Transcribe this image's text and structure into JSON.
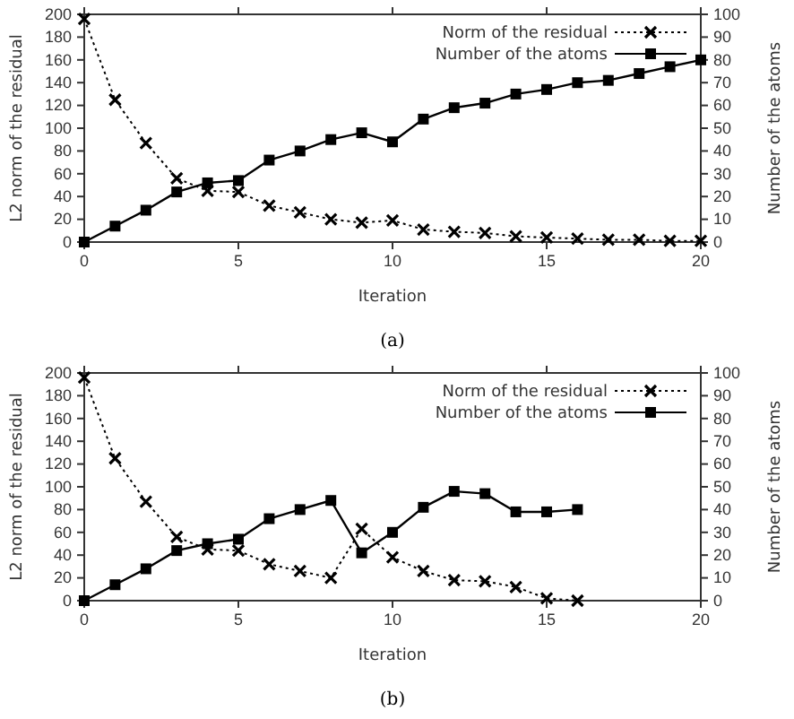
{
  "chart_data": [
    {
      "type": "line",
      "xlabel": "Iteration",
      "ylabel": "L2 norm of the residual",
      "y2label": "Number of the atoms",
      "annotations": [
        "(a)"
      ],
      "x": [
        0,
        1,
        2,
        3,
        4,
        5,
        6,
        7,
        8,
        9,
        10,
        11,
        12,
        13,
        14,
        15,
        16,
        17,
        18,
        19,
        20
      ],
      "xlim": [
        0,
        20
      ],
      "xticks": [
        0,
        5,
        10,
        15,
        20
      ],
      "ylim": [
        0,
        200
      ],
      "yticks": [
        0,
        20,
        40,
        60,
        80,
        100,
        120,
        140,
        160,
        180,
        200
      ],
      "y2lim": [
        0,
        100
      ],
      "y2ticks": [
        0,
        10,
        20,
        30,
        40,
        50,
        60,
        70,
        80,
        90,
        100
      ],
      "legend": "top right",
      "grid": false,
      "series": [
        {
          "name": "Norm of the residual",
          "color": "#000000",
          "marker": "cross",
          "line_style": "dotted",
          "values": [
            196,
            125,
            87,
            56,
            45,
            44,
            32,
            26,
            20,
            17,
            19,
            11,
            9,
            8,
            5,
            4,
            3,
            2,
            2,
            1,
            1
          ]
        },
        {
          "name": "Number of the atoms",
          "color": "#000000",
          "marker": "square",
          "line_style": "solid",
          "axis": "y2",
          "values": [
            0,
            7,
            14,
            22,
            26,
            27,
            36,
            40,
            45,
            48,
            44,
            54,
            59,
            61,
            65,
            67,
            70,
            71,
            74,
            77,
            80
          ]
        }
      ]
    },
    {
      "type": "line",
      "xlabel": "Iteration",
      "ylabel": "L2 norm of the residual",
      "y2label": "Number of the atoms",
      "annotations": [
        "(b)"
      ],
      "x": [
        0,
        1,
        2,
        3,
        4,
        5,
        6,
        7,
        8,
        9,
        10,
        11,
        12,
        13,
        14,
        15,
        16
      ],
      "xlim": [
        0,
        20
      ],
      "xticks": [
        0,
        5,
        10,
        15,
        20
      ],
      "ylim": [
        0,
        200
      ],
      "yticks": [
        0,
        20,
        40,
        60,
        80,
        100,
        120,
        140,
        160,
        180,
        200
      ],
      "y2lim": [
        0,
        100
      ],
      "y2ticks": [
        0,
        10,
        20,
        30,
        40,
        50,
        60,
        70,
        80,
        90,
        100
      ],
      "legend": "top right",
      "grid": false,
      "series": [
        {
          "name": "Norm of the residual",
          "color": "#000000",
          "marker": "cross",
          "line_style": "dotted",
          "values": [
            196,
            125,
            87,
            56,
            45,
            44,
            32,
            26,
            20,
            63,
            38,
            26,
            18,
            17,
            12,
            2,
            0
          ]
        },
        {
          "name": "Number of the atoms",
          "color": "#000000",
          "marker": "square",
          "line_style": "solid",
          "axis": "y2",
          "values": [
            0,
            7,
            14,
            22,
            25,
            27,
            36,
            40,
            44,
            21,
            30,
            41,
            48,
            47,
            39,
            39,
            40
          ]
        }
      ]
    }
  ]
}
